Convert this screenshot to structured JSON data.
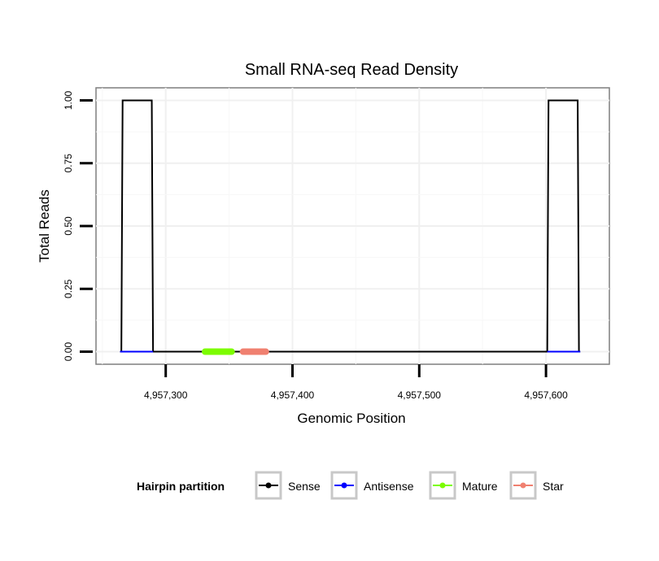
{
  "chart_data": {
    "type": "line",
    "title": "Small RNA-seq Read Density",
    "xlabel": "Genomic Position",
    "ylabel": "Total Reads",
    "xlim": [
      4957245,
      4957650
    ],
    "ylim": [
      -0.05,
      1.05
    ],
    "x_ticks": [
      4957300,
      4957400,
      4957500,
      4957600
    ],
    "x_tick_labels": [
      "4,957,300",
      "4,957,400",
      "4,957,500",
      "4,957,600"
    ],
    "y_ticks": [
      0,
      0.25,
      0.5,
      0.75,
      1.0
    ],
    "y_tick_labels": [
      "0.00",
      "0.25",
      "0.50",
      "0.75",
      "1.00"
    ],
    "grid": true,
    "legend": {
      "title": "Hairpin partition",
      "position": "bottom",
      "entries": [
        "Sense",
        "Antisense",
        "Mature",
        "Star"
      ]
    },
    "series": [
      {
        "name": "Sense",
        "color": "#000000",
        "x": [
          4957264,
          4957265,
          4957266,
          4957289,
          4957290,
          4957291,
          4957600,
          4957601,
          4957602,
          4957625,
          4957626,
          4957627
        ],
        "y": [
          0,
          0,
          1,
          1,
          0,
          0,
          0,
          0,
          1,
          1,
          0,
          0
        ]
      },
      {
        "name": "Antisense",
        "color": "#0000ff",
        "x": [
          4957264,
          4957290,
          4957601,
          4957627
        ],
        "y": [
          0,
          0,
          0,
          0
        ],
        "segments": [
          [
            4957264,
            4957290
          ],
          [
            4957601,
            4957627
          ]
        ]
      },
      {
        "name": "Mature",
        "color": "#7cfc00",
        "x": [
          4957331,
          4957352
        ],
        "y": [
          0,
          0
        ]
      },
      {
        "name": "Star",
        "color": "#f08070",
        "x": [
          4957361,
          4957379
        ],
        "y": [
          0,
          0
        ]
      }
    ]
  }
}
